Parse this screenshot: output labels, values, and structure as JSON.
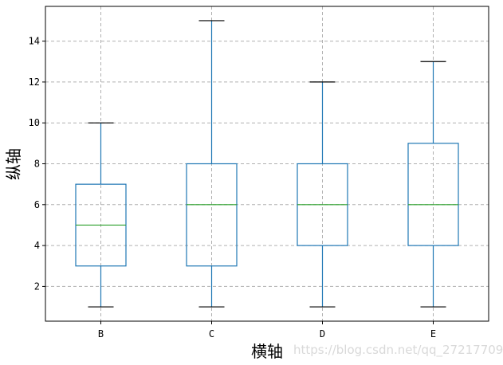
{
  "chart_data": {
    "type": "box",
    "categories": [
      "B",
      "C",
      "D",
      "E"
    ],
    "boxes": [
      {
        "category": "B",
        "whisker_low": 1,
        "q1": 3,
        "median": 5,
        "q3": 7,
        "whisker_high": 10
      },
      {
        "category": "C",
        "whisker_low": 1,
        "q1": 3,
        "median": 6,
        "q3": 8,
        "whisker_high": 15
      },
      {
        "category": "D",
        "whisker_low": 1,
        "q1": 4,
        "median": 6,
        "q3": 8,
        "whisker_high": 12
      },
      {
        "category": "E",
        "whisker_low": 1,
        "q1": 4,
        "median": 6,
        "q3": 9,
        "whisker_high": 13
      }
    ],
    "xlabel": "横轴",
    "ylabel": "纵轴",
    "ylim": [
      0.3,
      15.7
    ],
    "yticks": [
      2,
      4,
      6,
      8,
      10,
      12,
      14
    ],
    "grid": true,
    "colors": {
      "box": "#1f77b4",
      "median": "#2ca02c",
      "whisker_cap": "#000000",
      "grid": "#b0b0b0"
    }
  },
  "watermark": "https://blog.csdn.net/qq_27217709"
}
